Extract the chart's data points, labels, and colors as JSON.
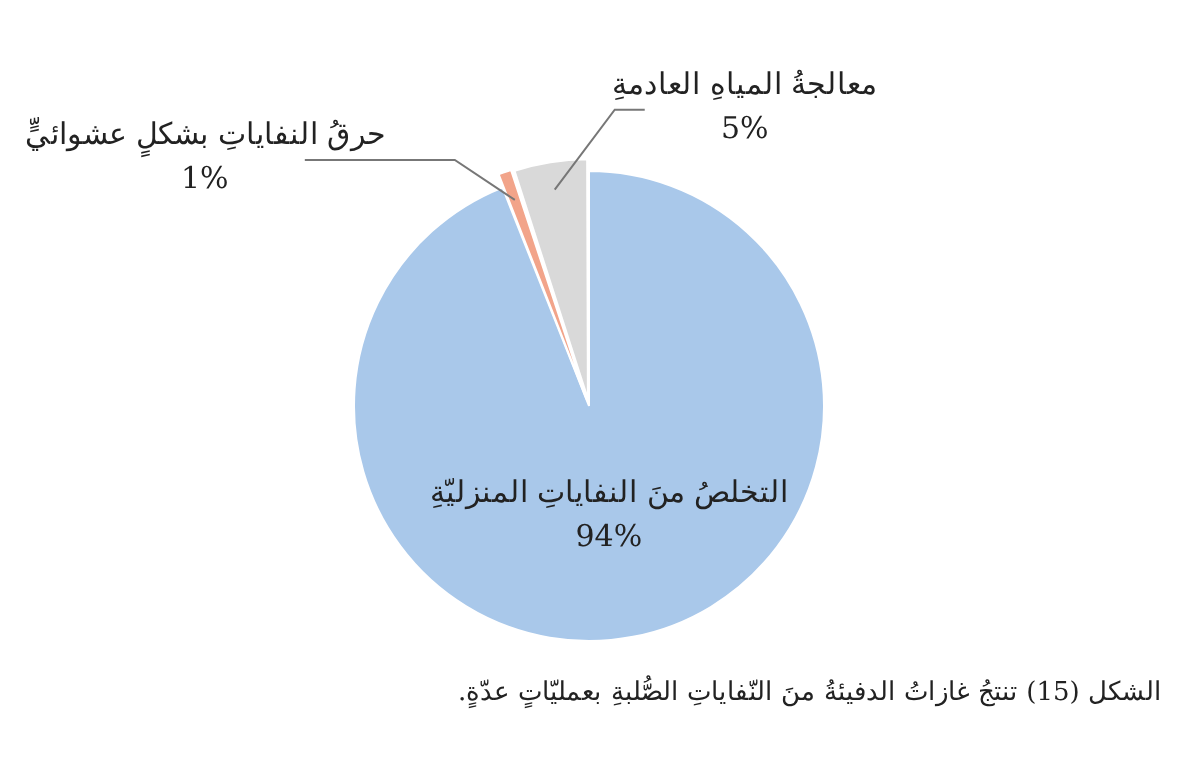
{
  "chart_data": {
    "type": "pie",
    "categories": [
      "التخلصُ منَ النفاياتِ المنزليّةِ",
      "حرقُ النفاياتِ بشكلٍ عشوائيٍّ",
      "معالجةُ المياهِ العادمةِ"
    ],
    "values": [
      94,
      1,
      5
    ],
    "colors": [
      "#a9c8ea",
      "#f2a48a",
      "#d9d9d9"
    ],
    "value_labels": [
      "94%",
      "1%",
      "5%"
    ],
    "legend": false,
    "annotations": [
      "الشكل (15) تنتجُ غازاتُ الدفيئةُ منَ النّفاياتِ الصُّلبةِ بعمليّاتٍ عدّةٍ."
    ]
  }
}
